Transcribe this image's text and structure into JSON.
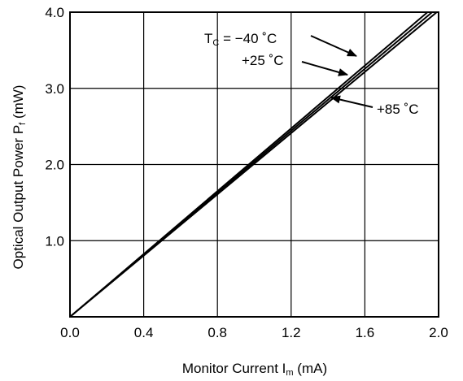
{
  "chart_data": {
    "type": "line",
    "xlabel": {
      "main": "Monitor Current  I",
      "sub": "m",
      "unit": " (mA)"
    },
    "ylabel": {
      "main": "Optical Output Power  P",
      "sub": "f",
      "unit": " (mW)"
    },
    "xlim": [
      0.0,
      2.0
    ],
    "ylim": [
      0.0,
      4.0
    ],
    "x_ticks": [
      "0.0",
      "0.4",
      "0.8",
      "1.2",
      "1.6",
      "2.0"
    ],
    "y_ticks": [
      "1.0",
      "2.0",
      "3.0",
      "4.0"
    ],
    "grid": true,
    "series": [
      {
        "name": "TC = −40 °C",
        "x": [
          0.0,
          1.94
        ],
        "y": [
          0.0,
          4.0
        ]
      },
      {
        "name": "+25 °C",
        "x": [
          0.0,
          1.965
        ],
        "y": [
          0.0,
          4.0
        ]
      },
      {
        "name": "+85 °C",
        "x": [
          0.0,
          1.99
        ],
        "y": [
          0.0,
          4.0
        ]
      }
    ],
    "annotations": [
      {
        "prefix": "T",
        "sub": "C",
        "text": " = −40 ˚C"
      },
      {
        "prefix": "",
        "sub": "",
        "text": "+25 ˚C"
      },
      {
        "prefix": "",
        "sub": "",
        "text": "+85 ˚C"
      }
    ]
  },
  "colors": {
    "line": "#000000",
    "grid": "#000000",
    "background": "#ffffff"
  }
}
